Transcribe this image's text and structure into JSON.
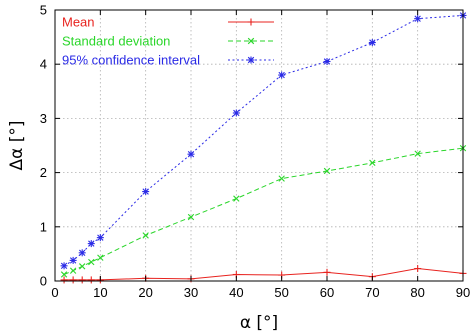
{
  "chart_data": {
    "type": "line",
    "xlabel": "α [°]",
    "ylabel": "Δα [°]",
    "xlim": [
      0,
      90
    ],
    "ylim": [
      0,
      5
    ],
    "xticks": [
      0,
      10,
      20,
      30,
      40,
      50,
      60,
      70,
      80,
      90
    ],
    "yticks": [
      0,
      1,
      2,
      3,
      4,
      5
    ],
    "grid": true,
    "legend_position": "top-left",
    "series": [
      {
        "name": "Mean",
        "color": "#e8231f",
        "marker": "plus",
        "line": "solid",
        "x": [
          2,
          4,
          6,
          8,
          10,
          20,
          30,
          40,
          50,
          60,
          70,
          80,
          90
        ],
        "y": [
          0.02,
          0.02,
          0.02,
          0.02,
          0.02,
          0.05,
          0.04,
          0.12,
          0.11,
          0.16,
          0.08,
          0.23,
          0.14
        ]
      },
      {
        "name": "Standard deviation",
        "color": "#2ad62a",
        "marker": "x",
        "line": "dashed",
        "x": [
          2,
          4,
          6,
          8,
          10,
          20,
          30,
          40,
          50,
          60,
          70,
          80,
          90
        ],
        "y": [
          0.12,
          0.19,
          0.27,
          0.35,
          0.43,
          0.84,
          1.18,
          1.52,
          1.89,
          2.03,
          2.18,
          2.35,
          2.45
        ]
      },
      {
        "name": "95% confidence interval",
        "color": "#2a2ae6",
        "marker": "star",
        "line": "dotted",
        "x": [
          2,
          4,
          6,
          8,
          10,
          20,
          30,
          40,
          50,
          60,
          70,
          80,
          90
        ],
        "y": [
          0.28,
          0.38,
          0.52,
          0.69,
          0.8,
          1.65,
          2.34,
          3.1,
          3.8,
          4.05,
          4.4,
          4.84,
          4.9
        ]
      }
    ]
  }
}
